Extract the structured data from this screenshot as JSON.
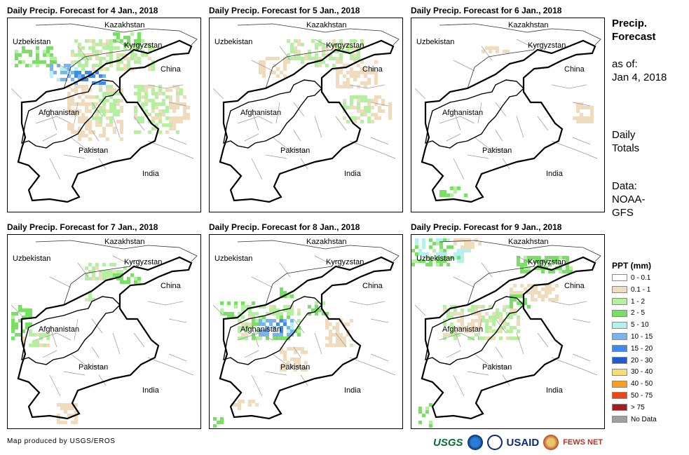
{
  "panels": [
    {
      "title": "Daily Precip. Forecast for 4 Jan., 2018"
    },
    {
      "title": "Daily Precip. Forecast for 5 Jan., 2018"
    },
    {
      "title": "Daily Precip. Forecast for 6 Jan., 2018"
    },
    {
      "title": "Daily Precip. Forecast for 7 Jan., 2018"
    },
    {
      "title": "Daily Precip. Forecast for 8 Jan., 2018"
    },
    {
      "title": "Daily Precip. Forecast for 9 Jan., 2018"
    }
  ],
  "map_labels": {
    "kazakhstan": "Kazakhstan",
    "uzbekistan": "Uzbekistan",
    "kyrgyzstan": "Kyrgyzstan",
    "china": "China",
    "afghanistan": "Afghanistan",
    "pakistan": "Pakistan",
    "india": "India"
  },
  "side": {
    "heading_line1": "Precip.",
    "heading_line2": "Forecast",
    "asof_line1": "as of:",
    "asof_line2": "Jan 4, 2018",
    "totals_line1": "Daily",
    "totals_line2": "Totals",
    "data_line1": "Data:",
    "data_line2": "NOAA-",
    "data_line3": "GFS"
  },
  "legend": {
    "title": "PPT (mm)",
    "items": [
      {
        "label": "0 - 0.1",
        "color": "#ffffff"
      },
      {
        "label": "0.1 - 1",
        "color": "#f0dcbc"
      },
      {
        "label": "1 - 2",
        "color": "#b4f0a0"
      },
      {
        "label": "2 - 5",
        "color": "#78e064"
      },
      {
        "label": "5 - 10",
        "color": "#b4f0f0"
      },
      {
        "label": "10 - 15",
        "color": "#78b4f0"
      },
      {
        "label": "15 - 20",
        "color": "#3c8cf0"
      },
      {
        "label": "20 - 30",
        "color": "#1e5ad2"
      },
      {
        "label": "30 - 40",
        "color": "#f5dc78"
      },
      {
        "label": "40 - 50",
        "color": "#f5a01e"
      },
      {
        "label": "50 - 75",
        "color": "#f04614"
      },
      {
        "label": "> 75",
        "color": "#a01e1e"
      },
      {
        "label": "No Data",
        "color": "#a0a0a0"
      }
    ]
  },
  "footer": {
    "credit": "Map produced by USGS/EROS",
    "logo_usgs": "USGS",
    "logo_usaid": "USAID",
    "logo_fews": "FEWS NET"
  }
}
